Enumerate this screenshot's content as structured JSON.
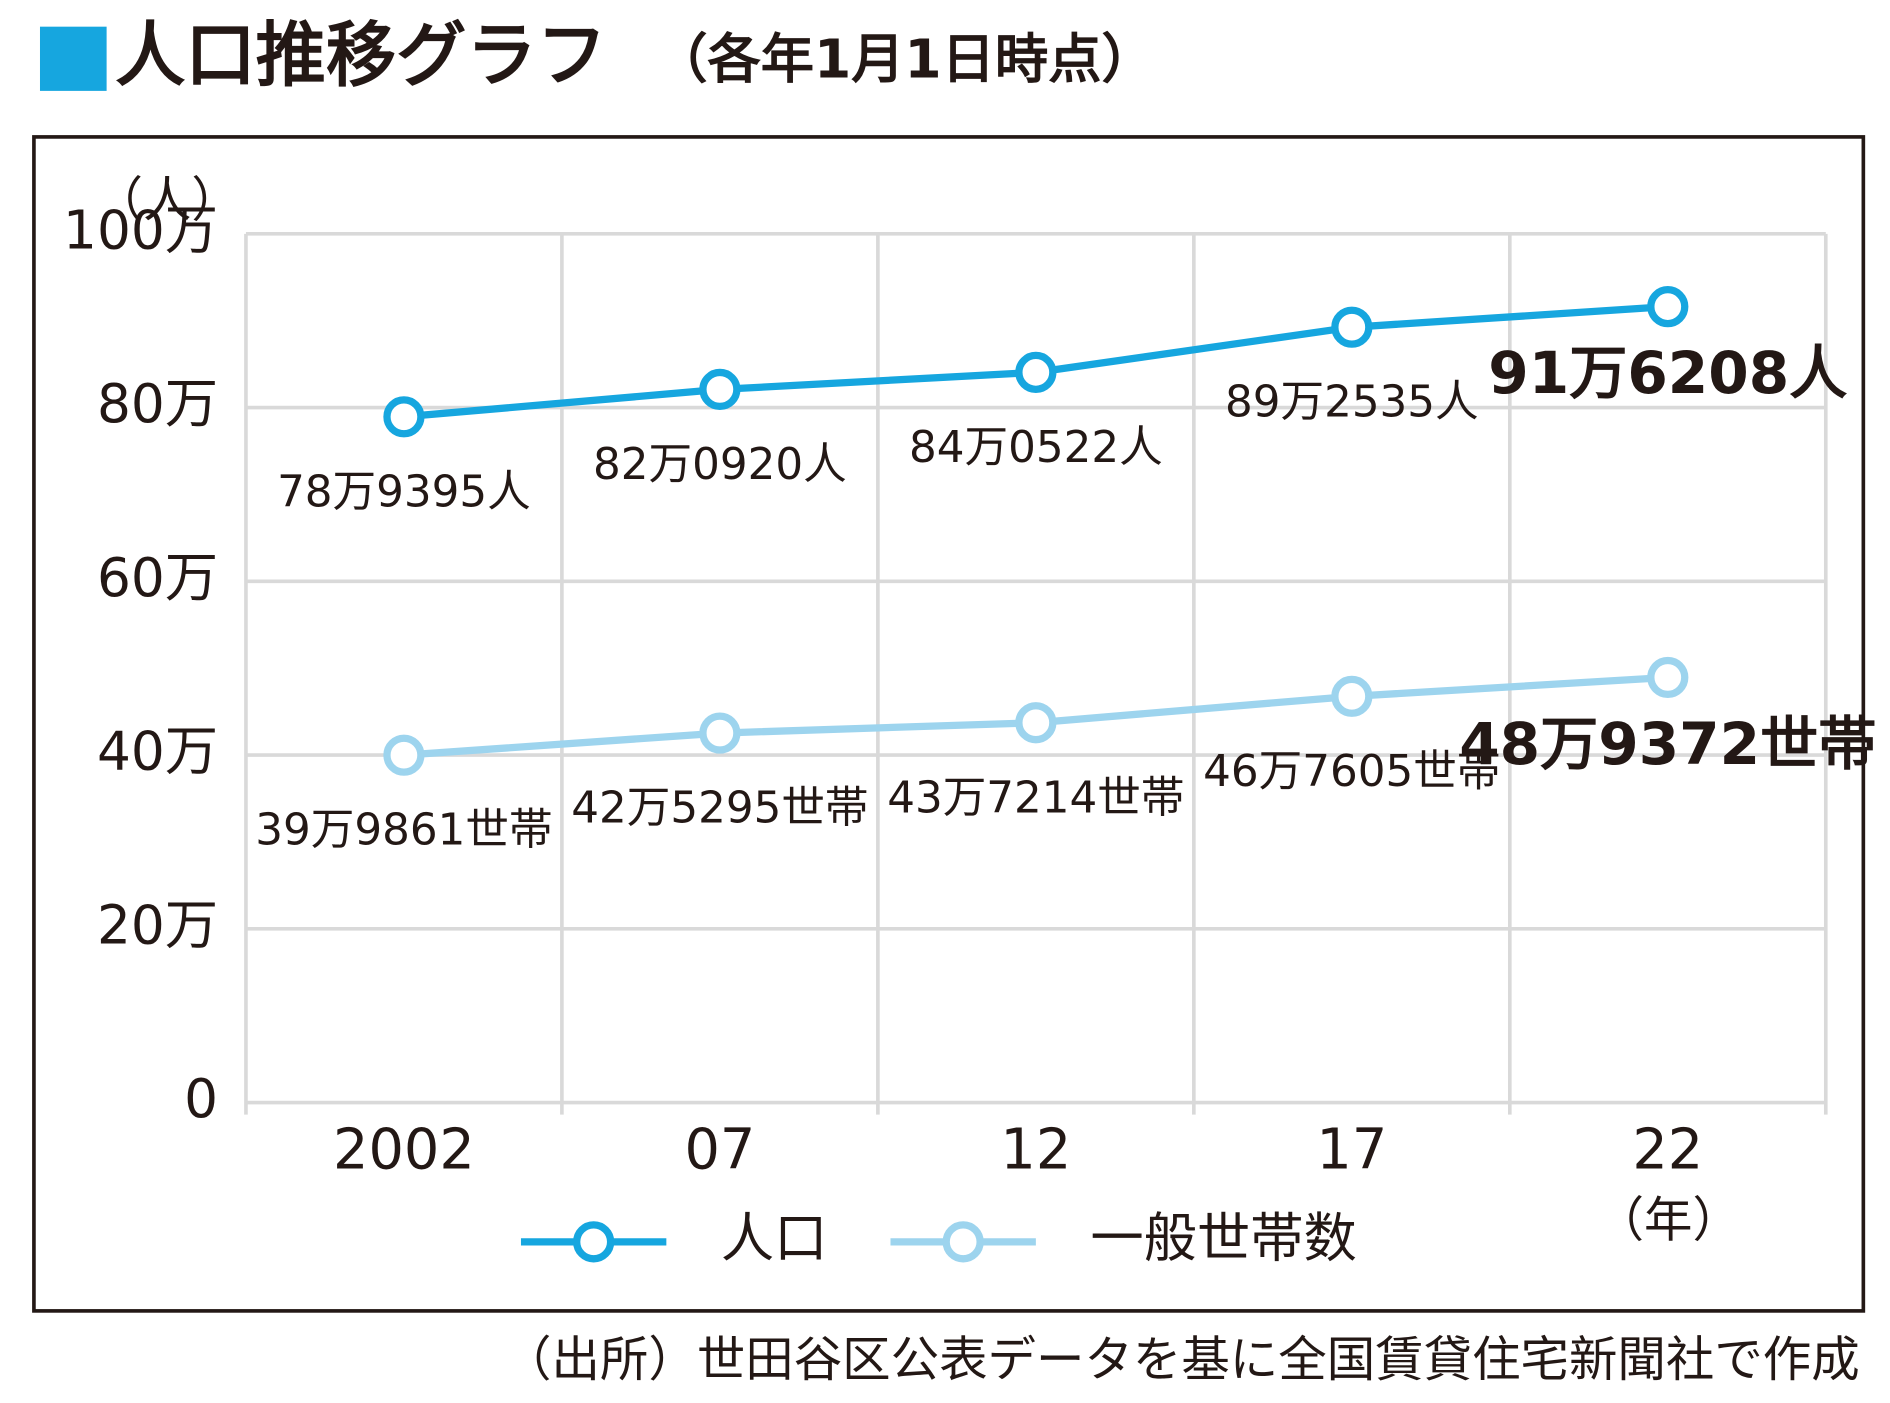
{
  "chart_data": {
    "type": "line",
    "title": "人口推移グラフ",
    "subtitle": "（各年1月1日時点）",
    "source": "（出所）世田谷区公表データを基に全国賃貸住宅新聞社で作成",
    "y_label": "（人）",
    "x_label": "（年）",
    "categories": [
      "2002",
      "07",
      "12",
      "17",
      "22"
    ],
    "series": [
      {
        "name": "人口",
        "color": "#16a6df",
        "values": [
          789395,
          820920,
          840522,
          892535,
          916208
        ],
        "value_labels": [
          "78万9395人",
          "82万0920人",
          "84万0522人",
          "89万2535人",
          "91万6208人"
        ]
      },
      {
        "name": "一般世帯数",
        "color": "#9dd4ee",
        "values": [
          399861,
          425295,
          437214,
          467605,
          489372
        ],
        "value_labels": [
          "39万9861世帯",
          "42万5295世帯",
          "43万7214世帯",
          "46万7605世帯",
          "48万9372世帯"
        ]
      }
    ],
    "ylim": [
      0,
      1000000
    ],
    "yticks": [
      0,
      {
        "value": 200000,
        "label": "20万"
      },
      {
        "value": 400000,
        "label": "40万"
      },
      {
        "value": 600000,
        "label": "60万"
      },
      {
        "value": 800000,
        "label": "80万"
      },
      {
        "value": 1000000,
        "label": "100万"
      }
    ],
    "grid": true
  }
}
